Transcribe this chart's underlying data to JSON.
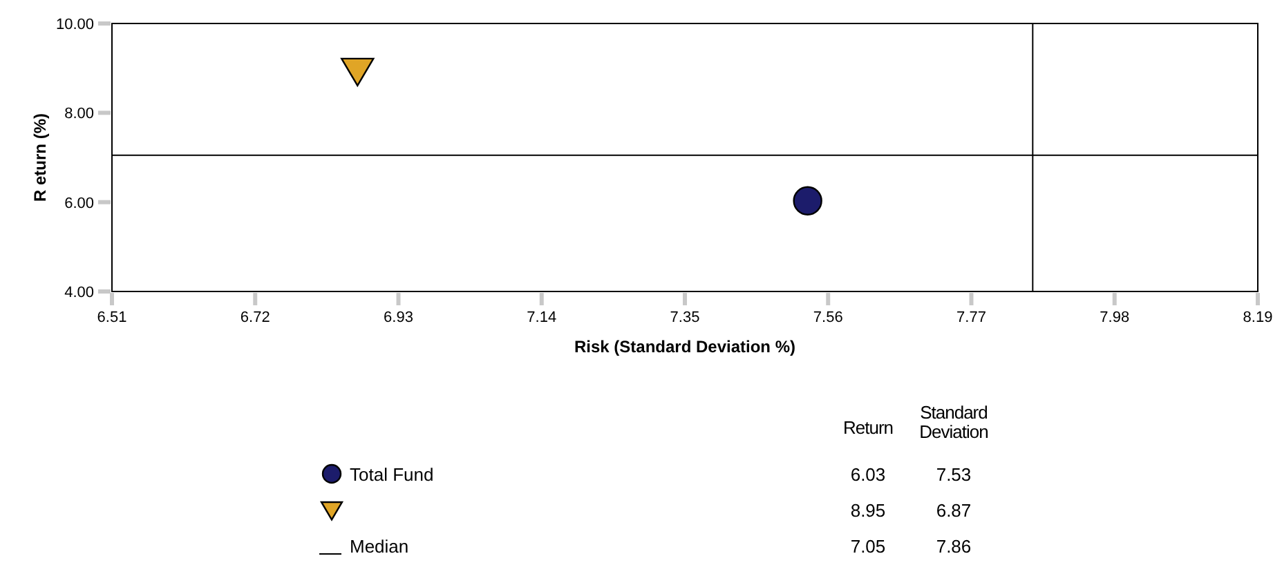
{
  "chart_data": [
    {
      "type": "scatter",
      "xlabel": "Risk (Standard Deviation %)",
      "ylabel": "R eturn (%)",
      "xlim": [
        6.51,
        8.19
      ],
      "xticks": [
        6.51,
        6.72,
        6.93,
        7.14,
        7.35,
        7.56,
        7.77,
        7.98,
        8.19
      ],
      "ylim": [
        4,
        10
      ],
      "yticks": [
        {
          "value": 4,
          "label": "4.00"
        },
        {
          "value": 6,
          "label": "6.00"
        },
        {
          "value": 8,
          "label": "8.00"
        },
        {
          "value": 10,
          "label": "10.00"
        }
      ],
      "series": [
        {
          "name": "Total Fund",
          "color": "#1c1c6b",
          "marker": "circle",
          "x": [
            7.53
          ],
          "values": [
            6.03
          ]
        },
        {
          "color": "#e0a526",
          "marker": "triangle",
          "x": [
            6.87
          ],
          "values": [
            8.95
          ]
        }
      ],
      "ref_lines": [
        {
          "axis": "y",
          "value": 7.05,
          "label": "Median",
          "color": "#000000"
        },
        {
          "axis": "x",
          "value": 7.86,
          "color": "#000000"
        }
      ],
      "grid": false,
      "legend": "bottom"
    },
    {
      "type": "other",
      "annotations": [
        "Return",
        "Standard Deviation",
        "6.03",
        "7.53",
        "8.95",
        "6.87",
        "7.05",
        "7.86"
      ]
    }
  ]
}
